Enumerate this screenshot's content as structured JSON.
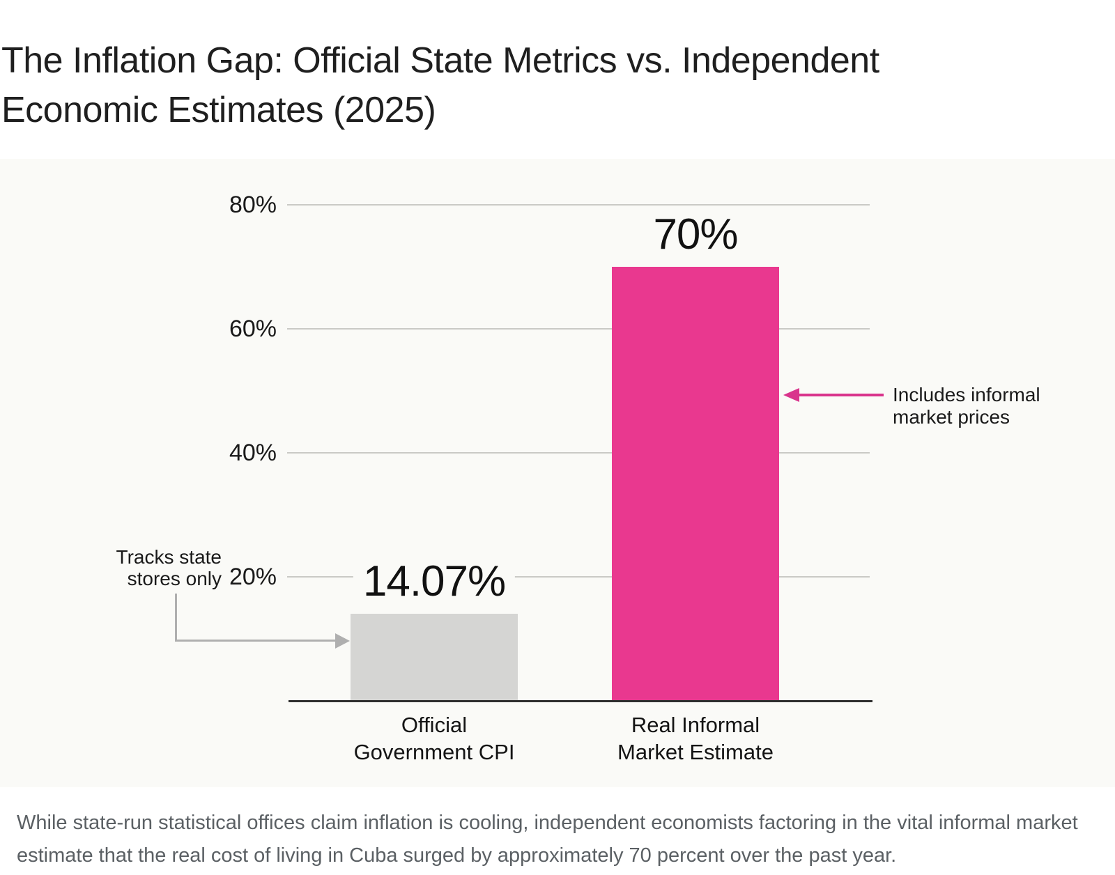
{
  "header": {
    "title": "The Inflation Gap: Official State Metrics vs. Independent Economic Estimates (2025)",
    "title_lines": [
      "The Inflation Gap: Official State Metrics vs. Independent",
      "Economic Estimates (2025)"
    ]
  },
  "chart_data": {
    "type": "bar",
    "title": "The Inflation Gap: Official State Metrics vs. Independent Economic Estimates (2025)",
    "categories": [
      "Official Government CPI",
      "Real Informal Market Estimate"
    ],
    "category_lines": [
      [
        "Official",
        "Government CPI"
      ],
      [
        "Real Informal",
        "Market Estimate"
      ]
    ],
    "values": [
      14.07,
      70
    ],
    "value_labels": [
      "14.07%",
      "70%"
    ],
    "bar_colors": [
      "#d5d5d3",
      "#e9388f"
    ],
    "xlabel": "",
    "ylabel": "",
    "ylim": [
      0,
      80
    ],
    "ytick_values": [
      20,
      40,
      60,
      80
    ],
    "ytick_labels": [
      "20%",
      "40%",
      "60%",
      "80%"
    ],
    "grid": true,
    "legend_position": "none",
    "annotations": [
      {
        "side": "left",
        "target": "Official Government CPI",
        "text_lines": [
          "Tracks state",
          "stores only"
        ],
        "arrow_color": "#afafaf"
      },
      {
        "side": "right",
        "target": "Real Informal Market Estimate",
        "text_lines": [
          "Includes informal",
          "market prices"
        ],
        "arrow_color": "#d9348c"
      }
    ]
  },
  "caption": {
    "text": "While state-run statistical offices claim inflation is cooling, independent economists factoring in the vital informal market estimate that the real cost of living in Cuba surged by approximately 70 percent over the past year.",
    "lines": [
      "While state-run statistical offices claim inflation is cooling, independent economists factoring in the vital informal market",
      "estimate that the real cost of living in Cuba surged by approximately 70 percent over the past year."
    ]
  },
  "colors": {
    "title_text": "#1f1f1f",
    "axis_text": "#1a1a1a",
    "caption_text": "#5b6064",
    "gridline": "#cacac6",
    "axis_line": "#2e2e2e",
    "bar_official": "#d5d5d3",
    "bar_informal": "#e9388f",
    "arrow_gray": "#afafaf",
    "arrow_pink": "#d9348c",
    "chart_background": "#fafaf7",
    "page_background": "#ffffff"
  }
}
